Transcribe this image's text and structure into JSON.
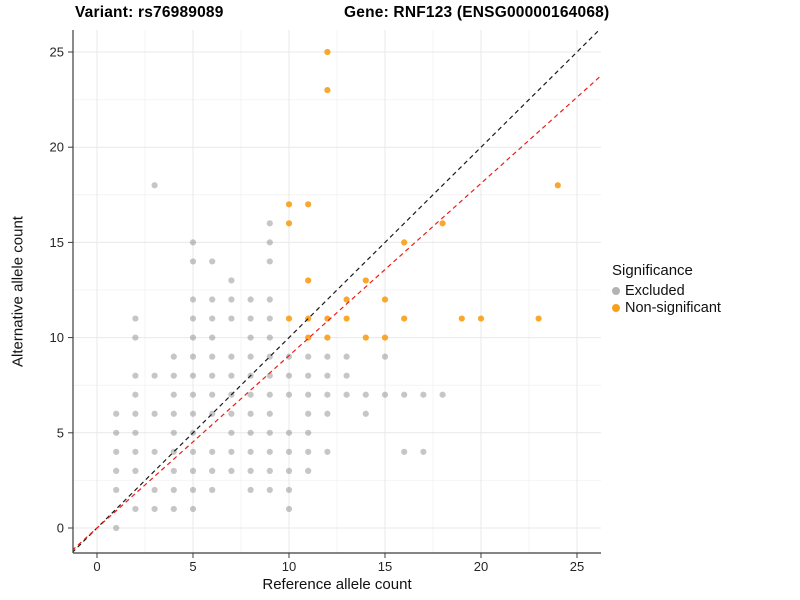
{
  "chart_data": {
    "type": "scatter",
    "title_variant": "Variant: rs76989089",
    "title_gene": "Gene: RNF123 (ENSG00000164068)",
    "xlabel": "Reference allele count",
    "ylabel": "Alternative allele count",
    "axes": {
      "xlim": [
        -1.3,
        26.3
      ],
      "ylim": [
        -1.3,
        26.2
      ],
      "ticks": [
        0,
        5,
        10,
        15,
        20,
        25
      ],
      "minor_ticks": [
        2.5,
        7.5,
        12.5,
        17.5,
        22.5
      ],
      "grid": true
    },
    "legend": {
      "title": "Significance",
      "position": "right",
      "entries": [
        {
          "label": "Excluded",
          "color": "#b3b3b3"
        },
        {
          "label": "Non-significant",
          "color": "#f9a01b"
        }
      ]
    },
    "lines": [
      {
        "name": "identity-line",
        "slope": 1,
        "intercept": 0,
        "color": "#1a1a1a"
      },
      {
        "name": "fit-line",
        "slope": 0.905,
        "intercept": 0,
        "color": "#ed1c16"
      }
    ],
    "series": [
      {
        "name": "Excluded",
        "color": "#818181",
        "points": [
          [
            1,
            0
          ],
          [
            2,
            1
          ],
          [
            3,
            1
          ],
          [
            4,
            1
          ],
          [
            5,
            1
          ],
          [
            10,
            1
          ],
          [
            1,
            2
          ],
          [
            3,
            2
          ],
          [
            4,
            2
          ],
          [
            5,
            2
          ],
          [
            6,
            2
          ],
          [
            8,
            2
          ],
          [
            9,
            2
          ],
          [
            10,
            2
          ],
          [
            1,
            3
          ],
          [
            2,
            3
          ],
          [
            4,
            3
          ],
          [
            5,
            3
          ],
          [
            6,
            3
          ],
          [
            7,
            3
          ],
          [
            8,
            3
          ],
          [
            9,
            3
          ],
          [
            10,
            3
          ],
          [
            11,
            3
          ],
          [
            1,
            4
          ],
          [
            2,
            4
          ],
          [
            3,
            4
          ],
          [
            4,
            4
          ],
          [
            5,
            4
          ],
          [
            6,
            4
          ],
          [
            7,
            4
          ],
          [
            8,
            4
          ],
          [
            9,
            4
          ],
          [
            10,
            4
          ],
          [
            11,
            4
          ],
          [
            12,
            4
          ],
          [
            16,
            4
          ],
          [
            17,
            4
          ],
          [
            1,
            5
          ],
          [
            2,
            5
          ],
          [
            4,
            5
          ],
          [
            5,
            5
          ],
          [
            7,
            5
          ],
          [
            8,
            5
          ],
          [
            9,
            5
          ],
          [
            10,
            5
          ],
          [
            11,
            5
          ],
          [
            1,
            6
          ],
          [
            2,
            6
          ],
          [
            3,
            6
          ],
          [
            4,
            6
          ],
          [
            5,
            6
          ],
          [
            6,
            6
          ],
          [
            7,
            6
          ],
          [
            8,
            6
          ],
          [
            9,
            6
          ],
          [
            11,
            6
          ],
          [
            12,
            6
          ],
          [
            14,
            6
          ],
          [
            2,
            7
          ],
          [
            4,
            7
          ],
          [
            5,
            7
          ],
          [
            6,
            7
          ],
          [
            7,
            7
          ],
          [
            8,
            7
          ],
          [
            9,
            7
          ],
          [
            10,
            7
          ],
          [
            11,
            7
          ],
          [
            12,
            7
          ],
          [
            13,
            7
          ],
          [
            14,
            7
          ],
          [
            15,
            7
          ],
          [
            16,
            7
          ],
          [
            17,
            7
          ],
          [
            18,
            7
          ],
          [
            2,
            8
          ],
          [
            3,
            8
          ],
          [
            4,
            8
          ],
          [
            5,
            8
          ],
          [
            6,
            8
          ],
          [
            7,
            8
          ],
          [
            8,
            8
          ],
          [
            9,
            8
          ],
          [
            10,
            8
          ],
          [
            11,
            8
          ],
          [
            12,
            8
          ],
          [
            13,
            8
          ],
          [
            4,
            9
          ],
          [
            5,
            9
          ],
          [
            6,
            9
          ],
          [
            7,
            9
          ],
          [
            8,
            9
          ],
          [
            9,
            9
          ],
          [
            10,
            9
          ],
          [
            11,
            9
          ],
          [
            12,
            9
          ],
          [
            13,
            9
          ],
          [
            15,
            9
          ],
          [
            2,
            10
          ],
          [
            5,
            10
          ],
          [
            6,
            10
          ],
          [
            8,
            10
          ],
          [
            9,
            10
          ],
          [
            2,
            11
          ],
          [
            5,
            11
          ],
          [
            6,
            11
          ],
          [
            7,
            11
          ],
          [
            8,
            11
          ],
          [
            9,
            11
          ],
          [
            5,
            12
          ],
          [
            6,
            12
          ],
          [
            7,
            12
          ],
          [
            8,
            12
          ],
          [
            9,
            12
          ],
          [
            7,
            13
          ],
          [
            5,
            14
          ],
          [
            6,
            14
          ],
          [
            9,
            14
          ],
          [
            5,
            15
          ],
          [
            9,
            15
          ],
          [
            9,
            16
          ],
          [
            3,
            18
          ]
        ]
      },
      {
        "name": "Non-significant",
        "color": "#f9a01b",
        "points": [
          [
            11,
            10
          ],
          [
            12,
            10
          ],
          [
            14,
            10
          ],
          [
            15,
            10
          ],
          [
            10,
            11
          ],
          [
            11,
            11
          ],
          [
            12,
            11
          ],
          [
            13,
            11
          ],
          [
            16,
            11
          ],
          [
            19,
            11
          ],
          [
            20,
            11
          ],
          [
            23,
            11
          ],
          [
            13,
            12
          ],
          [
            15,
            12
          ],
          [
            11,
            13
          ],
          [
            14,
            13
          ],
          [
            16,
            15
          ],
          [
            10,
            16
          ],
          [
            18,
            16
          ],
          [
            10,
            17
          ],
          [
            11,
            17
          ],
          [
            24,
            18
          ],
          [
            12,
            23
          ],
          [
            12,
            25
          ]
        ]
      }
    ]
  }
}
